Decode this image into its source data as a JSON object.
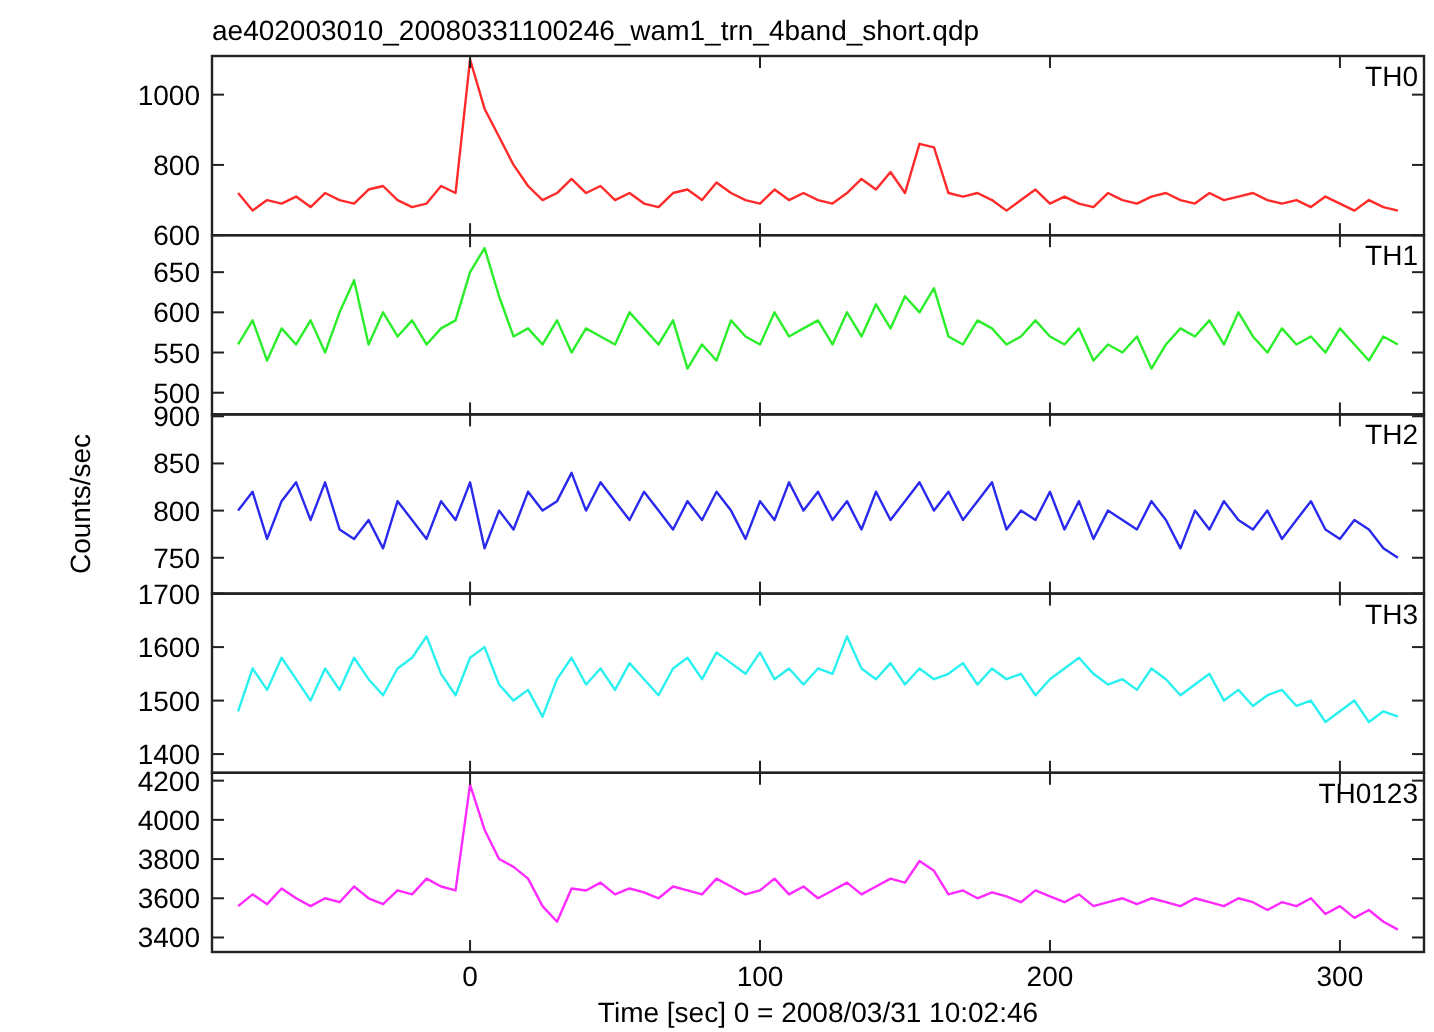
{
  "chart_data": [
    {
      "type": "line",
      "title": "ae402003010_20080331100246_wam1_trn_4band_short.qdp",
      "x": [
        -80,
        -75,
        -70,
        -65,
        -60,
        -55,
        -50,
        -45,
        -40,
        -35,
        -30,
        -25,
        -20,
        -15,
        -10,
        -5,
        0,
        5,
        10,
        15,
        20,
        25,
        30,
        35,
        40,
        45,
        50,
        55,
        60,
        65,
        70,
        75,
        80,
        85,
        90,
        95,
        100,
        105,
        110,
        115,
        120,
        125,
        130,
        135,
        140,
        145,
        150,
        155,
        160,
        165,
        170,
        175,
        180,
        185,
        190,
        195,
        200,
        205,
        210,
        215,
        220,
        225,
        230,
        235,
        240,
        245,
        250,
        255,
        260,
        265,
        270,
        275,
        280,
        285,
        290,
        295,
        300,
        305,
        310,
        315,
        320
      ],
      "xlim": [
        -89,
        329
      ],
      "xticks": [
        0,
        100,
        200,
        300
      ],
      "ylim": [
        600,
        1110
      ],
      "yticks": [
        600,
        800,
        1000
      ],
      "tick_labels": "y",
      "grid": false,
      "series": [
        {
          "name": "TH0",
          "color": "#ff2a2a",
          "values": [
            720,
            670,
            700,
            690,
            710,
            680,
            720,
            700,
            690,
            730,
            740,
            700,
            680,
            690,
            740,
            720,
            1100,
            960,
            880,
            800,
            740,
            700,
            720,
            760,
            720,
            740,
            700,
            720,
            690,
            680,
            720,
            730,
            700,
            750,
            720,
            700,
            690,
            730,
            700,
            720,
            700,
            690,
            720,
            760,
            730,
            780,
            720,
            860,
            850,
            720,
            710,
            720,
            700,
            670,
            700,
            730,
            690,
            710,
            690,
            680,
            720,
            700,
            690,
            710,
            720,
            700,
            690,
            720,
            700,
            710,
            720,
            700,
            690,
            700,
            680,
            710,
            690,
            670,
            700,
            680,
            670
          ]
        }
      ]
    },
    {
      "type": "line",
      "x": [
        -80,
        -75,
        -70,
        -65,
        -60,
        -55,
        -50,
        -45,
        -40,
        -35,
        -30,
        -25,
        -20,
        -15,
        -10,
        -5,
        0,
        5,
        10,
        15,
        20,
        25,
        30,
        35,
        40,
        45,
        50,
        55,
        60,
        65,
        70,
        75,
        80,
        85,
        90,
        95,
        100,
        105,
        110,
        115,
        120,
        125,
        130,
        135,
        140,
        145,
        150,
        155,
        160,
        165,
        170,
        175,
        180,
        185,
        190,
        195,
        200,
        205,
        210,
        215,
        220,
        225,
        230,
        235,
        240,
        245,
        250,
        255,
        260,
        265,
        270,
        275,
        280,
        285,
        290,
        295,
        300,
        305,
        310,
        315,
        320
      ],
      "xlim": [
        -89,
        329
      ],
      "xticks": [
        0,
        100,
        200,
        300
      ],
      "ylim": [
        473,
        696
      ],
      "yticks": [
        500,
        550,
        600,
        650
      ],
      "tick_labels": "y",
      "grid": false,
      "series": [
        {
          "name": "TH1",
          "color": "#2aee2a",
          "values": [
            560,
            590,
            540,
            580,
            560,
            590,
            550,
            600,
            640,
            560,
            600,
            570,
            590,
            560,
            580,
            590,
            650,
            680,
            620,
            570,
            580,
            560,
            590,
            550,
            580,
            570,
            560,
            600,
            580,
            560,
            590,
            530,
            560,
            540,
            590,
            570,
            560,
            600,
            570,
            580,
            590,
            560,
            600,
            570,
            610,
            580,
            620,
            600,
            630,
            570,
            560,
            590,
            580,
            560,
            570,
            590,
            570,
            560,
            580,
            540,
            560,
            550,
            570,
            530,
            560,
            580,
            570,
            590,
            560,
            600,
            570,
            550,
            580,
            560,
            570,
            550,
            580,
            560,
            540,
            570,
            560
          ]
        }
      ]
    },
    {
      "type": "line",
      "ylabel": "Counts/sec",
      "x": [
        -80,
        -75,
        -70,
        -65,
        -60,
        -55,
        -50,
        -45,
        -40,
        -35,
        -30,
        -25,
        -20,
        -15,
        -10,
        -5,
        0,
        5,
        10,
        15,
        20,
        25,
        30,
        35,
        40,
        45,
        50,
        55,
        60,
        65,
        70,
        75,
        80,
        85,
        90,
        95,
        100,
        105,
        110,
        115,
        120,
        125,
        130,
        135,
        140,
        145,
        150,
        155,
        160,
        165,
        170,
        175,
        180,
        185,
        190,
        195,
        200,
        205,
        210,
        215,
        220,
        225,
        230,
        235,
        240,
        245,
        250,
        255,
        260,
        265,
        270,
        275,
        280,
        285,
        290,
        295,
        300,
        305,
        310,
        315,
        320
      ],
      "xlim": [
        -89,
        329
      ],
      "xticks": [
        0,
        100,
        200,
        300
      ],
      "ylim": [
        712,
        902
      ],
      "yticks": [
        750,
        800,
        850,
        900
      ],
      "tick_labels": "y",
      "grid": false,
      "series": [
        {
          "name": "TH2",
          "color": "#2a2aee",
          "values": [
            800,
            820,
            770,
            810,
            830,
            790,
            830,
            780,
            770,
            790,
            760,
            810,
            790,
            770,
            810,
            790,
            830,
            760,
            800,
            780,
            820,
            800,
            810,
            840,
            800,
            830,
            810,
            790,
            820,
            800,
            780,
            810,
            790,
            820,
            800,
            770,
            810,
            790,
            830,
            800,
            820,
            790,
            810,
            780,
            820,
            790,
            810,
            830,
            800,
            820,
            790,
            810,
            830,
            780,
            800,
            790,
            820,
            780,
            810,
            770,
            800,
            790,
            780,
            810,
            790,
            760,
            800,
            780,
            810,
            790,
            780,
            800,
            770,
            790,
            810,
            780,
            770,
            790,
            780,
            760,
            750
          ]
        }
      ]
    },
    {
      "type": "line",
      "x": [
        -80,
        -75,
        -70,
        -65,
        -60,
        -55,
        -50,
        -45,
        -40,
        -35,
        -30,
        -25,
        -20,
        -15,
        -10,
        -5,
        0,
        5,
        10,
        15,
        20,
        25,
        30,
        35,
        40,
        45,
        50,
        55,
        60,
        65,
        70,
        75,
        80,
        85,
        90,
        95,
        100,
        105,
        110,
        115,
        120,
        125,
        130,
        135,
        140,
        145,
        150,
        155,
        160,
        165,
        170,
        175,
        180,
        185,
        190,
        195,
        200,
        205,
        210,
        215,
        220,
        225,
        230,
        235,
        240,
        245,
        250,
        255,
        260,
        265,
        270,
        275,
        280,
        285,
        290,
        295,
        300,
        305,
        310,
        315,
        320
      ],
      "xlim": [
        -89,
        329
      ],
      "xticks": [
        0,
        100,
        200,
        300
      ],
      "ylim": [
        1365,
        1700
      ],
      "yticks": [
        1400,
        1500,
        1600,
        1700
      ],
      "tick_labels": "y",
      "grid": false,
      "series": [
        {
          "name": "TH3",
          "color": "#2af0f0",
          "values": [
            1480,
            1560,
            1520,
            1580,
            1540,
            1500,
            1560,
            1520,
            1580,
            1540,
            1510,
            1560,
            1580,
            1620,
            1550,
            1510,
            1580,
            1600,
            1530,
            1500,
            1520,
            1470,
            1540,
            1580,
            1530,
            1560,
            1520,
            1570,
            1540,
            1510,
            1560,
            1580,
            1540,
            1590,
            1570,
            1550,
            1590,
            1540,
            1560,
            1530,
            1560,
            1550,
            1620,
            1560,
            1540,
            1570,
            1530,
            1560,
            1540,
            1550,
            1570,
            1530,
            1560,
            1540,
            1550,
            1510,
            1540,
            1560,
            1580,
            1550,
            1530,
            1540,
            1520,
            1560,
            1540,
            1510,
            1530,
            1550,
            1500,
            1520,
            1490,
            1510,
            1520,
            1490,
            1500,
            1460,
            1480,
            1500,
            1460,
            1480,
            1470
          ]
        }
      ]
    },
    {
      "type": "line",
      "xlabel": "Time [sec] 0 = 2008/03/31 10:02:46",
      "x": [
        -80,
        -75,
        -70,
        -65,
        -60,
        -55,
        -50,
        -45,
        -40,
        -35,
        -30,
        -25,
        -20,
        -15,
        -10,
        -5,
        0,
        5,
        10,
        15,
        20,
        25,
        30,
        35,
        40,
        45,
        50,
        55,
        60,
        65,
        70,
        75,
        80,
        85,
        90,
        95,
        100,
        105,
        110,
        115,
        120,
        125,
        130,
        135,
        140,
        145,
        150,
        155,
        160,
        165,
        170,
        175,
        180,
        185,
        190,
        195,
        200,
        205,
        210,
        215,
        220,
        225,
        230,
        235,
        240,
        245,
        250,
        255,
        260,
        265,
        270,
        275,
        280,
        285,
        290,
        295,
        300,
        305,
        310,
        315,
        320
      ],
      "xlim": [
        -89,
        329
      ],
      "xticks": [
        0,
        100,
        200,
        300
      ],
      "ylim": [
        3326,
        4240
      ],
      "yticks": [
        3400,
        3600,
        3800,
        4000,
        4200
      ],
      "grid": false,
      "series": [
        {
          "name": "TH0123",
          "color": "#ff2aff",
          "values": [
            3560,
            3620,
            3570,
            3650,
            3600,
            3560,
            3600,
            3580,
            3660,
            3600,
            3570,
            3640,
            3620,
            3700,
            3660,
            3640,
            4180,
            3950,
            3800,
            3760,
            3700,
            3560,
            3480,
            3650,
            3640,
            3680,
            3620,
            3650,
            3630,
            3600,
            3660,
            3640,
            3620,
            3700,
            3660,
            3620,
            3640,
            3700,
            3620,
            3660,
            3600,
            3640,
            3680,
            3620,
            3660,
            3700,
            3680,
            3790,
            3740,
            3620,
            3640,
            3600,
            3630,
            3610,
            3580,
            3640,
            3610,
            3580,
            3620,
            3560,
            3580,
            3600,
            3570,
            3600,
            3580,
            3560,
            3600,
            3580,
            3560,
            3600,
            3580,
            3540,
            3580,
            3560,
            3600,
            3520,
            3560,
            3500,
            3540,
            3480,
            3440
          ]
        }
      ]
    }
  ]
}
